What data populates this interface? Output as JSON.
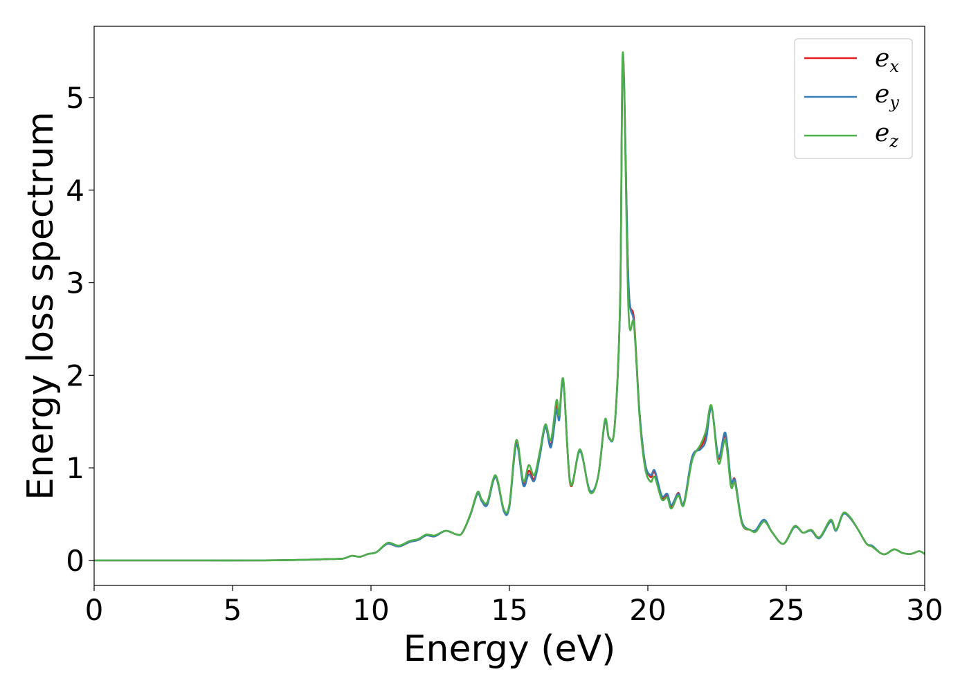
{
  "chart_data": {
    "type": "line",
    "title": "",
    "xlabel": "Energy (eV)",
    "ylabel": "Energy loss spectrum",
    "xlim": [
      0,
      30
    ],
    "ylim": [
      -0.27,
      5.77
    ],
    "xticks": [
      0,
      5,
      10,
      15,
      20,
      25,
      30
    ],
    "yticks": [
      0,
      1,
      2,
      3,
      4,
      5
    ],
    "grid": false,
    "legend_position": "top-right",
    "colors": {
      "ex": "#e41a1c",
      "ey": "#377eb8",
      "ez": "#4daf4a"
    },
    "legend": [
      {
        "key": "ex",
        "base": "e",
        "sub": "x"
      },
      {
        "key": "ey",
        "base": "e",
        "sub": "y"
      },
      {
        "key": "ez",
        "base": "e",
        "sub": "z"
      }
    ],
    "x": [
      0,
      2,
      4,
      6,
      7,
      8,
      8.5,
      9,
      9.3,
      9.6,
      9.9,
      10.2,
      10.6,
      11.0,
      11.4,
      11.7,
      12.0,
      12.3,
      12.7,
      13.1,
      13.3,
      13.6,
      13.85,
      14.0,
      14.2,
      14.5,
      14.8,
      15.0,
      15.25,
      15.5,
      15.7,
      15.9,
      16.1,
      16.3,
      16.5,
      16.7,
      16.8,
      16.95,
      17.2,
      17.55,
      17.9,
      18.2,
      18.45,
      18.6,
      18.8,
      19.0,
      19.1,
      19.3,
      19.5,
      19.7,
      19.9,
      20.1,
      20.25,
      20.5,
      20.7,
      20.85,
      21.1,
      21.3,
      21.6,
      21.9,
      22.1,
      22.3,
      22.55,
      22.8,
      23.0,
      23.15,
      23.4,
      23.7,
      23.9,
      24.2,
      24.5,
      24.9,
      25.3,
      25.6,
      25.9,
      26.2,
      26.6,
      26.8,
      27.05,
      27.3,
      27.6,
      27.9,
      28.1,
      28.4,
      28.6,
      28.9,
      29.2,
      29.5,
      29.8,
      30
    ]
  },
  "series": {
    "ex": [
      0,
      0,
      0,
      0,
      0.003,
      0.01,
      0.015,
      0.02,
      0.05,
      0.04,
      0.07,
      0.09,
      0.18,
      0.15,
      0.2,
      0.22,
      0.27,
      0.26,
      0.32,
      0.28,
      0.3,
      0.5,
      0.73,
      0.65,
      0.62,
      0.91,
      0.54,
      0.6,
      1.28,
      0.83,
      0.97,
      0.88,
      1.15,
      1.45,
      1.25,
      1.68,
      1.55,
      1.93,
      0.82,
      1.19,
      0.75,
      0.9,
      1.5,
      1.32,
      1.45,
      2.8,
      5.47,
      3.0,
      2.6,
      1.6,
      1.05,
      0.9,
      0.95,
      0.68,
      0.7,
      0.58,
      0.73,
      0.6,
      1.1,
      1.22,
      1.35,
      1.65,
      1.1,
      1.35,
      0.85,
      0.87,
      0.4,
      0.33,
      0.32,
      0.43,
      0.3,
      0.18,
      0.37,
      0.3,
      0.33,
      0.25,
      0.43,
      0.33,
      0.5,
      0.46,
      0.33,
      0.18,
      0.15,
      0.08,
      0.07,
      0.12,
      0.08,
      0.07,
      0.1,
      0.07
    ],
    "ey": [
      0,
      0,
      0,
      0,
      0.003,
      0.01,
      0.015,
      0.02,
      0.05,
      0.04,
      0.07,
      0.09,
      0.18,
      0.15,
      0.2,
      0.22,
      0.27,
      0.26,
      0.32,
      0.28,
      0.3,
      0.5,
      0.72,
      0.64,
      0.6,
      0.9,
      0.53,
      0.58,
      1.25,
      0.81,
      0.93,
      0.86,
      1.13,
      1.44,
      1.22,
      1.62,
      1.52,
      1.92,
      0.84,
      1.18,
      0.76,
      0.9,
      1.5,
      1.32,
      1.44,
      2.8,
      5.43,
      3.0,
      2.55,
      1.6,
      1.05,
      0.92,
      0.97,
      0.7,
      0.72,
      0.6,
      0.72,
      0.62,
      1.12,
      1.2,
      1.3,
      1.65,
      1.12,
      1.38,
      0.86,
      0.86,
      0.42,
      0.33,
      0.33,
      0.44,
      0.3,
      0.18,
      0.36,
      0.3,
      0.32,
      0.24,
      0.42,
      0.32,
      0.5,
      0.46,
      0.33,
      0.18,
      0.16,
      0.08,
      0.07,
      0.12,
      0.08,
      0.07,
      0.1,
      0.07
    ],
    "ez": [
      0,
      0,
      0,
      0,
      0.003,
      0.01,
      0.015,
      0.02,
      0.05,
      0.04,
      0.07,
      0.09,
      0.19,
      0.16,
      0.21,
      0.23,
      0.28,
      0.27,
      0.32,
      0.28,
      0.3,
      0.51,
      0.74,
      0.66,
      0.63,
      0.92,
      0.55,
      0.61,
      1.3,
      0.86,
      1.03,
      0.92,
      1.18,
      1.47,
      1.3,
      1.73,
      1.57,
      1.95,
      0.83,
      1.2,
      0.74,
      0.9,
      1.52,
      1.33,
      1.45,
      2.85,
      5.49,
      2.7,
      2.55,
      1.55,
      1.0,
      0.85,
      0.9,
      0.66,
      0.68,
      0.56,
      0.7,
      0.6,
      1.08,
      1.25,
      1.4,
      1.67,
      1.05,
      1.3,
      0.8,
      0.83,
      0.4,
      0.33,
      0.31,
      0.42,
      0.3,
      0.18,
      0.37,
      0.3,
      0.33,
      0.25,
      0.44,
      0.33,
      0.51,
      0.47,
      0.33,
      0.18,
      0.15,
      0.08,
      0.07,
      0.12,
      0.08,
      0.07,
      0.1,
      0.07
    ]
  }
}
